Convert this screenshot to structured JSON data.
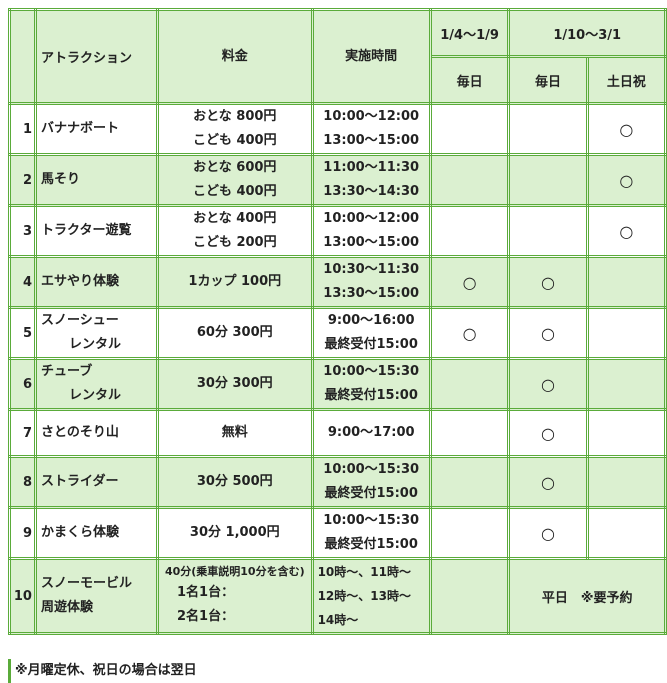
{
  "header": {
    "attraction": "アトラクション",
    "fee": "料金",
    "time": "実施時間",
    "period1": "1/4〜1/9",
    "period2": "1/10〜3/1",
    "daily1": "毎日",
    "daily2": "毎日",
    "weekend": "土日祝"
  },
  "mark": "○",
  "rows": [
    {
      "num": "1",
      "name": [
        "バナナボート"
      ],
      "fee": [
        "おとな 800円",
        "こども 400円"
      ],
      "time": [
        "10:00〜12:00",
        "13:00〜15:00"
      ],
      "p1": "",
      "p2": "",
      "p3": "○"
    },
    {
      "num": "2",
      "name": [
        "馬そり"
      ],
      "fee": [
        "おとな 600円",
        "こども 400円"
      ],
      "time": [
        "11:00〜11:30",
        "13:30〜14:30"
      ],
      "p1": "",
      "p2": "",
      "p3": "○"
    },
    {
      "num": "3",
      "name": [
        "トラクター遊覧"
      ],
      "fee": [
        "おとな 400円",
        "こども 200円"
      ],
      "time": [
        "10:00〜12:00",
        "13:00〜15:00"
      ],
      "p1": "",
      "p2": "",
      "p3": "○"
    },
    {
      "num": "4",
      "name": [
        "エサやり体験"
      ],
      "fee": [
        "1カップ 100円"
      ],
      "time": [
        "10:30〜11:30",
        "13:30〜15:00"
      ],
      "p1": "○",
      "p2": "○",
      "p3": ""
    },
    {
      "num": "5",
      "name": [
        "スノーシュー",
        "レンタル"
      ],
      "fee": [
        "60分 300円"
      ],
      "time": [
        "9:00〜16:00",
        "最終受付15:00"
      ],
      "p1": "○",
      "p2": "○",
      "p3": ""
    },
    {
      "num": "6",
      "name": [
        "チューブ",
        "レンタル"
      ],
      "fee": [
        "30分 300円"
      ],
      "time": [
        "10:00〜15:30",
        "最終受付15:00"
      ],
      "p1": "",
      "p2": "○",
      "p3": ""
    },
    {
      "num": "7",
      "name": [
        "さとのそり山"
      ],
      "fee": [
        "無料"
      ],
      "time": [
        "9:00〜17:00"
      ],
      "p1": "",
      "p2": "○",
      "p3": ""
    },
    {
      "num": "8",
      "name": [
        "ストライダー"
      ],
      "fee": [
        "30分 500円"
      ],
      "time": [
        "10:00〜15:30",
        "最終受付15:00"
      ],
      "p1": "",
      "p2": "○",
      "p3": ""
    },
    {
      "num": "9",
      "name": [
        "かまくら体験"
      ],
      "fee": [
        "30分 1,000円"
      ],
      "time": [
        "10:00〜15:30",
        "最終受付15:00"
      ],
      "p1": "",
      "p2": "○",
      "p3": ""
    },
    {
      "num": "10",
      "name": [
        "スノーモービル",
        "周遊体験"
      ],
      "fee": [
        "40分(乗車説明10分を含む)",
        "1名1台：",
        "2名1台："
      ],
      "time": [
        "10時〜、11時〜",
        "12時〜、13時〜",
        "14時〜"
      ],
      "p1": "",
      "p23": "平日　※要予約"
    }
  ],
  "footnote": "※月曜定休、祝日の場合は翌日"
}
